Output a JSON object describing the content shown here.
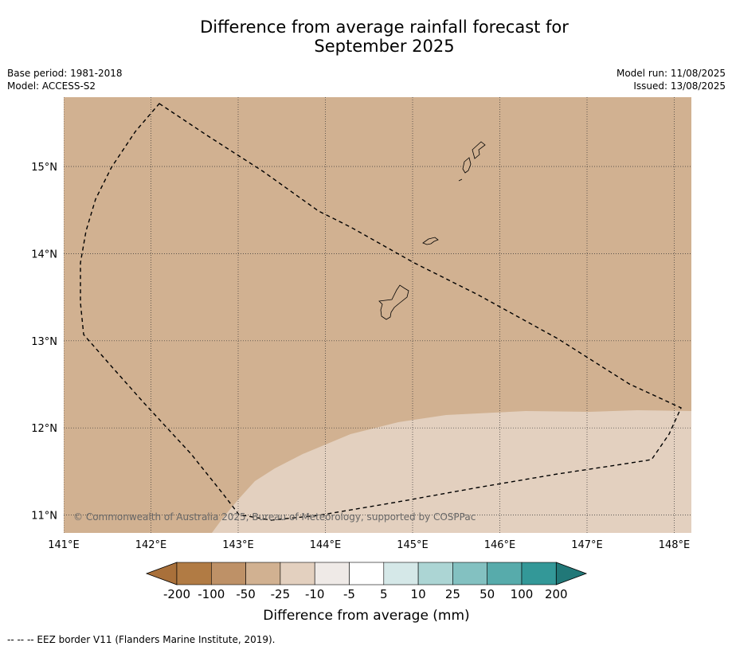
{
  "title_line1": "Difference from average rainfall forecast for",
  "title_line2": "September 2025",
  "meta_left": {
    "base_period": "Base period: 1981-2018",
    "model": "Model: ACCESS-S2"
  },
  "meta_right": {
    "model_run": "Model run: 11/08/2025",
    "issued": "Issued: 13/08/2025"
  },
  "map": {
    "lon_ticks": [
      "141°E",
      "142°E",
      "143°E",
      "144°E",
      "145°E",
      "146°E",
      "147°E",
      "148°E"
    ],
    "lat_ticks": [
      "15°N",
      "14°N",
      "13°N",
      "12°N",
      "11°N"
    ],
    "lon_range": [
      141.0,
      148.2
    ],
    "lat_range": [
      10.8,
      15.8
    ],
    "copyright": "© Commonwealth of Australia 2025, Bureau of Meteorology, supported by COSPPac",
    "colors": {
      "land_bg": "#d1b191",
      "light_zone": "#e3d0bf",
      "border": "#000000"
    }
  },
  "legend": {
    "title": "Difference from average (mm)",
    "ticks": [
      "-200",
      "-100",
      "-50",
      "-25",
      "-10",
      "-5",
      "5",
      "10",
      "25",
      "50",
      "100",
      "200"
    ],
    "colors": [
      "#a9703a",
      "#b17b44",
      "#be9167",
      "#d1b191",
      "#e3d0bf",
      "#efeae7",
      "#ffffff",
      "#d5e8e8",
      "#acd5d4",
      "#83c1c1",
      "#57abab",
      "#339898",
      "#217878"
    ]
  },
  "footer": "--  --  -- EEZ border V11 (Flanders Marine Institute, 2019)."
}
